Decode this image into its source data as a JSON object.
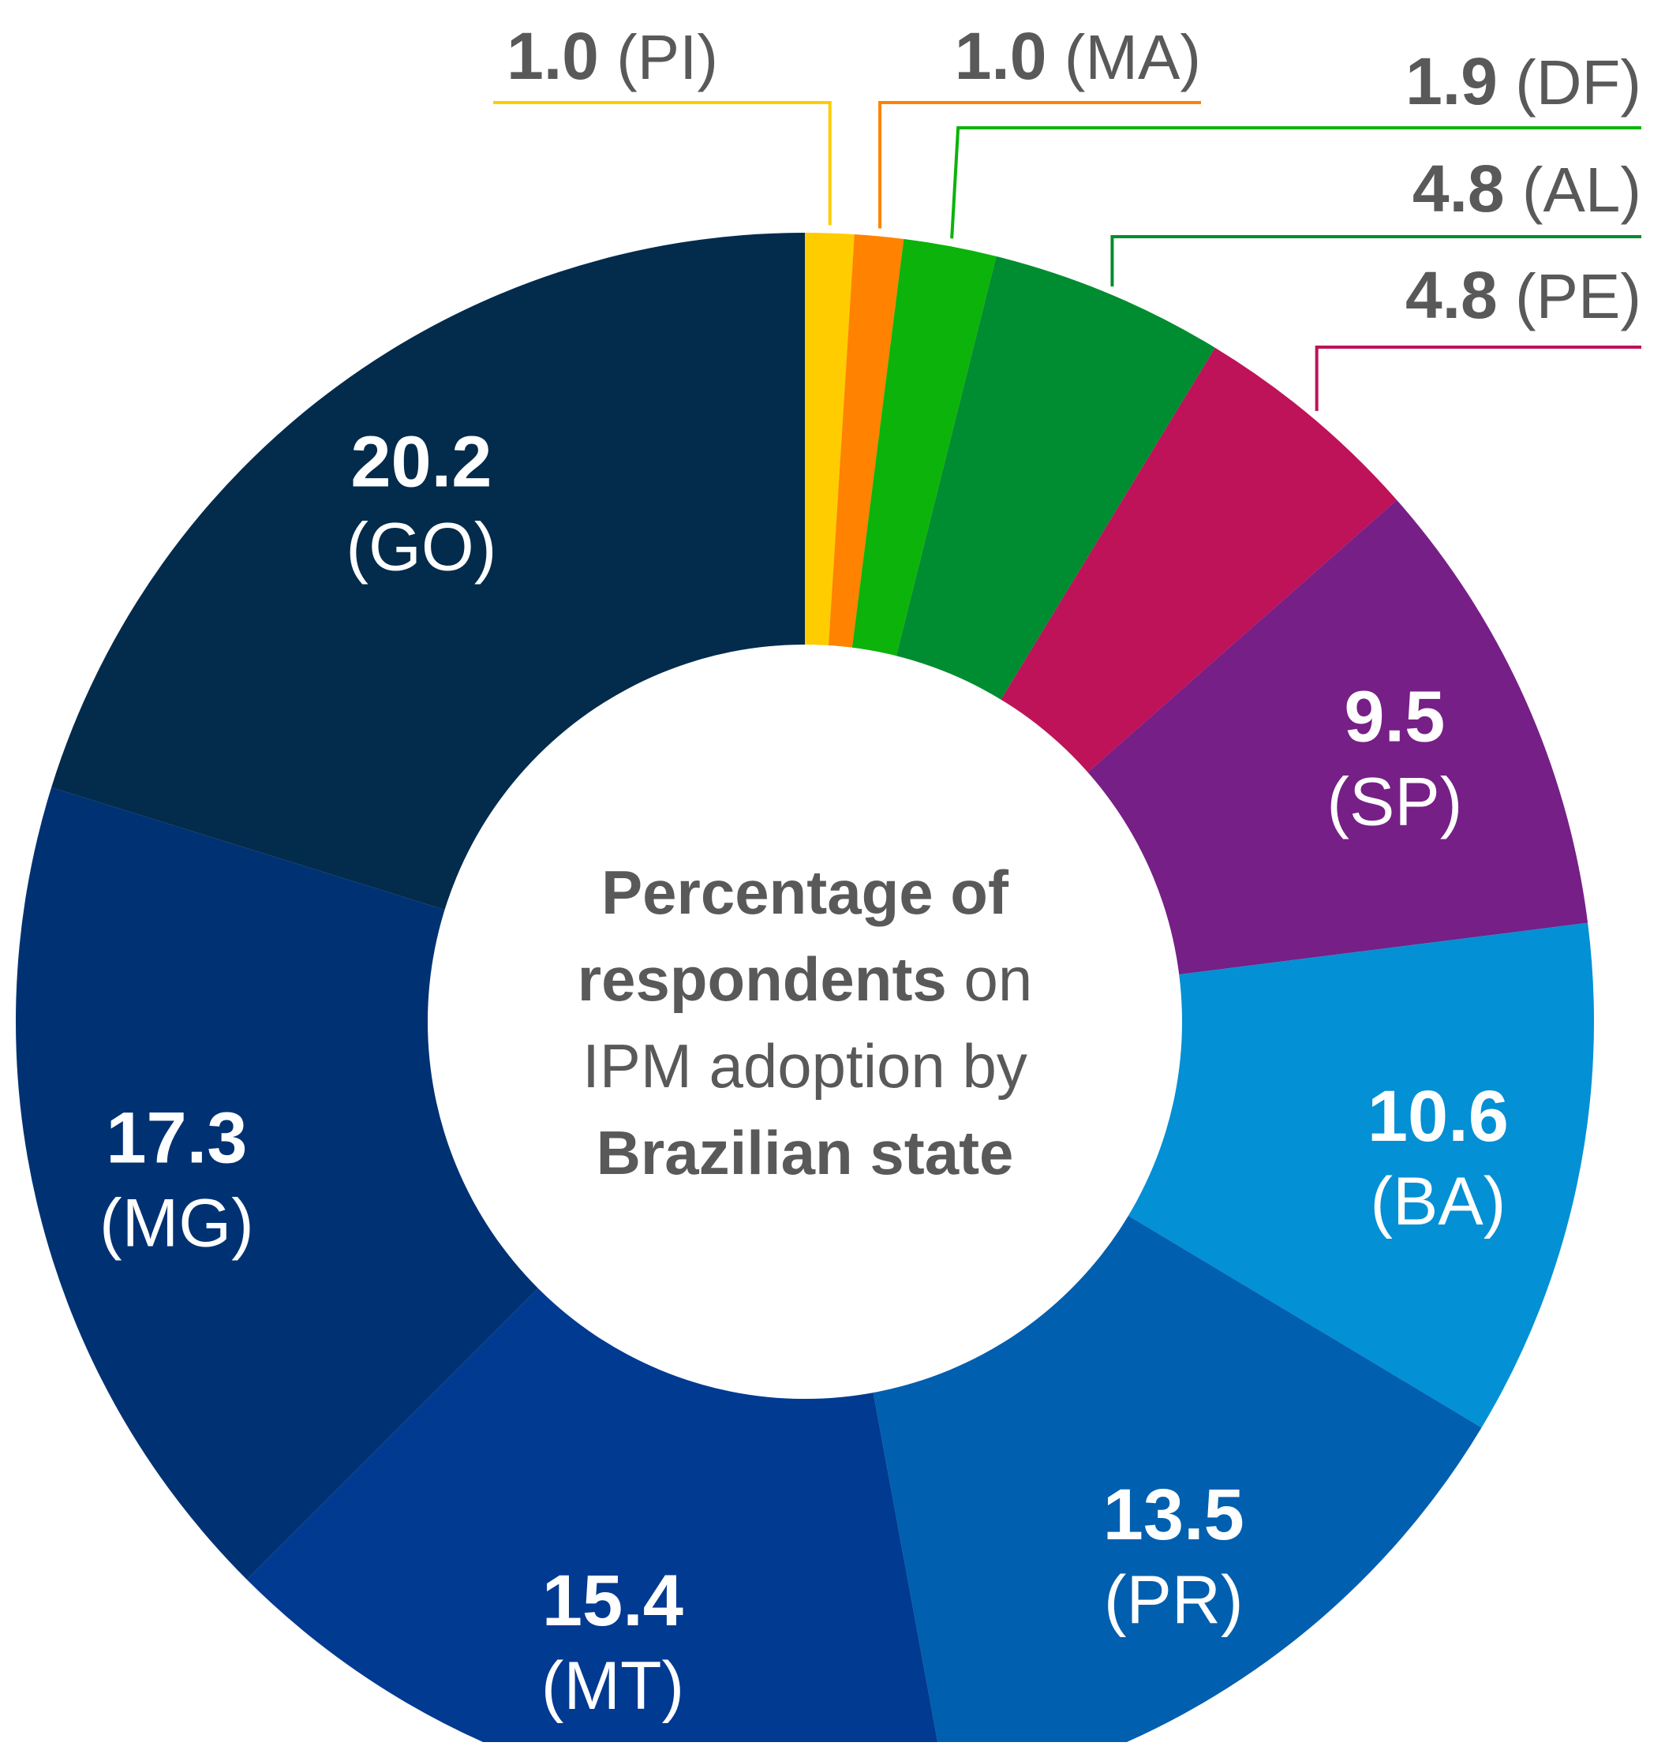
{
  "chart_data": {
    "type": "pie",
    "variant": "donut",
    "title_parts": [
      [
        {
          "text": "Percentage of",
          "bold": true
        }
      ],
      [
        {
          "text": "respondents",
          "bold": true
        },
        {
          "text": " on",
          "bold": false
        }
      ],
      [
        {
          "text": "IPM adoption by",
          "bold": false
        }
      ],
      [
        {
          "text": "Brazilian state",
          "bold": true
        }
      ]
    ],
    "slices": [
      {
        "label": "PI",
        "value": 1.0,
        "value_text": "1.0",
        "color": "#FFCC00",
        "label_position": "outside"
      },
      {
        "label": "MA",
        "value": 1.0,
        "value_text": "1.0",
        "color": "#FF8200",
        "label_position": "outside"
      },
      {
        "label": "DF",
        "value": 1.9,
        "value_text": "1.9",
        "color": "#0BB30B",
        "label_position": "outside"
      },
      {
        "label": "AL",
        "value": 4.8,
        "value_text": "4.8",
        "color": "#008C30",
        "label_position": "outside"
      },
      {
        "label": "PE",
        "value": 4.8,
        "value_text": "4.8",
        "color": "#BE1259",
        "label_position": "outside"
      },
      {
        "label": "SP",
        "value": 9.5,
        "value_text": "9.5",
        "color": "#761F86",
        "label_position": "inside"
      },
      {
        "label": "BA",
        "value": 10.6,
        "value_text": "10.6",
        "color": "#0390D4",
        "label_position": "inside"
      },
      {
        "label": "PR",
        "value": 13.5,
        "value_text": "13.5",
        "color": "#005FAF",
        "label_position": "inside"
      },
      {
        "label": "MT",
        "value": 15.4,
        "value_text": "15.4",
        "color": "#003A91",
        "label_position": "inside"
      },
      {
        "label": "MG",
        "value": 17.3,
        "value_text": "17.3",
        "color": "#003273",
        "label_position": "inside"
      },
      {
        "label": "GO",
        "value": 20.2,
        "value_text": "20.2",
        "color": "#022B4C",
        "label_position": "inside"
      }
    ]
  }
}
